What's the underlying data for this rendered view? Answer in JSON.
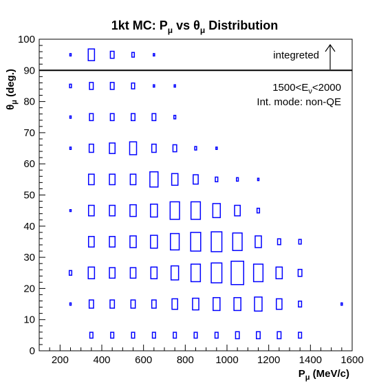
{
  "chart_data": {
    "type": "box2d",
    "title": {
      "main": "1kt MC: P",
      "sub1": "μ",
      "mid": " vs θ",
      "sub2": "μ",
      "end": " Distribution"
    },
    "xlabel": {
      "main": "P",
      "sub": "μ",
      "end": " (MeV/c)"
    },
    "ylabel": {
      "main": "θ",
      "sub": "μ",
      "end": " (deg.)"
    },
    "xlim": [
      100,
      1600
    ],
    "ylim": [
      0,
      100
    ],
    "x_ticks": [
      200,
      400,
      600,
      800,
      1000,
      1200,
      1400,
      1600
    ],
    "y_ticks": [
      0,
      10,
      20,
      30,
      40,
      50,
      60,
      70,
      80,
      90,
      100
    ],
    "divider_y": 90,
    "annotations": {
      "integrated": "integreted",
      "energy": {
        "pre": "1500<E",
        "sub": "ν",
        "post": "<2000"
      },
      "mode": "Int. mode: non-QE"
    },
    "bin_width": {
      "x": 100,
      "y": 10
    },
    "points": [
      {
        "x": 250,
        "y": 95,
        "w": 0.1
      },
      {
        "x": 350,
        "y": 95,
        "w": 0.5
      },
      {
        "x": 450,
        "y": 95,
        "w": 0.3
      },
      {
        "x": 550,
        "y": 95,
        "w": 0.2
      },
      {
        "x": 650,
        "y": 95,
        "w": 0.1
      },
      {
        "x": 250,
        "y": 85,
        "w": 0.15
      },
      {
        "x": 350,
        "y": 85,
        "w": 0.3
      },
      {
        "x": 450,
        "y": 85,
        "w": 0.3
      },
      {
        "x": 550,
        "y": 85,
        "w": 0.25
      },
      {
        "x": 650,
        "y": 85,
        "w": 0.1
      },
      {
        "x": 750,
        "y": 85,
        "w": 0.1
      },
      {
        "x": 250,
        "y": 75,
        "w": 0.1
      },
      {
        "x": 350,
        "y": 75,
        "w": 0.3
      },
      {
        "x": 450,
        "y": 75,
        "w": 0.3
      },
      {
        "x": 550,
        "y": 75,
        "w": 0.3
      },
      {
        "x": 650,
        "y": 75,
        "w": 0.3
      },
      {
        "x": 750,
        "y": 75,
        "w": 0.15
      },
      {
        "x": 250,
        "y": 65,
        "w": 0.1
      },
      {
        "x": 350,
        "y": 65,
        "w": 0.35
      },
      {
        "x": 450,
        "y": 65,
        "w": 0.45
      },
      {
        "x": 550,
        "y": 65,
        "w": 0.55
      },
      {
        "x": 650,
        "y": 65,
        "w": 0.35
      },
      {
        "x": 750,
        "y": 65,
        "w": 0.3
      },
      {
        "x": 850,
        "y": 65,
        "w": 0.15
      },
      {
        "x": 950,
        "y": 65,
        "w": 0.1
      },
      {
        "x": 350,
        "y": 55,
        "w": 0.45
      },
      {
        "x": 450,
        "y": 55,
        "w": 0.45
      },
      {
        "x": 550,
        "y": 55,
        "w": 0.45
      },
      {
        "x": 650,
        "y": 55,
        "w": 0.65
      },
      {
        "x": 750,
        "y": 55,
        "w": 0.5
      },
      {
        "x": 850,
        "y": 55,
        "w": 0.4
      },
      {
        "x": 950,
        "y": 55,
        "w": 0.2
      },
      {
        "x": 1050,
        "y": 55,
        "w": 0.15
      },
      {
        "x": 1150,
        "y": 55,
        "w": 0.1
      },
      {
        "x": 250,
        "y": 45,
        "w": 0.08
      },
      {
        "x": 350,
        "y": 45,
        "w": 0.45
      },
      {
        "x": 450,
        "y": 45,
        "w": 0.45
      },
      {
        "x": 550,
        "y": 45,
        "w": 0.5
      },
      {
        "x": 650,
        "y": 45,
        "w": 0.55
      },
      {
        "x": 750,
        "y": 45,
        "w": 0.75
      },
      {
        "x": 850,
        "y": 45,
        "w": 0.75
      },
      {
        "x": 950,
        "y": 45,
        "w": 0.6
      },
      {
        "x": 1050,
        "y": 45,
        "w": 0.45
      },
      {
        "x": 1150,
        "y": 45,
        "w": 0.2
      },
      {
        "x": 350,
        "y": 35,
        "w": 0.45
      },
      {
        "x": 450,
        "y": 35,
        "w": 0.45
      },
      {
        "x": 550,
        "y": 35,
        "w": 0.5
      },
      {
        "x": 650,
        "y": 35,
        "w": 0.55
      },
      {
        "x": 750,
        "y": 35,
        "w": 0.7
      },
      {
        "x": 850,
        "y": 35,
        "w": 0.8
      },
      {
        "x": 950,
        "y": 35,
        "w": 0.85
      },
      {
        "x": 1050,
        "y": 35,
        "w": 0.75
      },
      {
        "x": 1150,
        "y": 35,
        "w": 0.5
      },
      {
        "x": 1250,
        "y": 35,
        "w": 0.25
      },
      {
        "x": 1350,
        "y": 35,
        "w": 0.2
      },
      {
        "x": 250,
        "y": 25,
        "w": 0.2
      },
      {
        "x": 350,
        "y": 25,
        "w": 0.5
      },
      {
        "x": 450,
        "y": 25,
        "w": 0.45
      },
      {
        "x": 550,
        "y": 25,
        "w": 0.45
      },
      {
        "x": 650,
        "y": 25,
        "w": 0.5
      },
      {
        "x": 750,
        "y": 25,
        "w": 0.6
      },
      {
        "x": 850,
        "y": 25,
        "w": 0.75
      },
      {
        "x": 950,
        "y": 25,
        "w": 0.85
      },
      {
        "x": 1050,
        "y": 25,
        "w": 1.0
      },
      {
        "x": 1150,
        "y": 25,
        "w": 0.75
      },
      {
        "x": 1250,
        "y": 25,
        "w": 0.5
      },
      {
        "x": 1350,
        "y": 25,
        "w": 0.3
      },
      {
        "x": 250,
        "y": 15,
        "w": 0.1
      },
      {
        "x": 350,
        "y": 15,
        "w": 0.35
      },
      {
        "x": 450,
        "y": 15,
        "w": 0.35
      },
      {
        "x": 550,
        "y": 15,
        "w": 0.35
      },
      {
        "x": 650,
        "y": 15,
        "w": 0.35
      },
      {
        "x": 750,
        "y": 15,
        "w": 0.45
      },
      {
        "x": 850,
        "y": 15,
        "w": 0.5
      },
      {
        "x": 950,
        "y": 15,
        "w": 0.55
      },
      {
        "x": 1050,
        "y": 15,
        "w": 0.55
      },
      {
        "x": 1150,
        "y": 15,
        "w": 0.6
      },
      {
        "x": 1250,
        "y": 15,
        "w": 0.45
      },
      {
        "x": 1350,
        "y": 15,
        "w": 0.25
      },
      {
        "x": 1550,
        "y": 15,
        "w": 0.1
      },
      {
        "x": 350,
        "y": 5,
        "w": 0.25
      },
      {
        "x": 450,
        "y": 5,
        "w": 0.25
      },
      {
        "x": 550,
        "y": 5,
        "w": 0.25
      },
      {
        "x": 650,
        "y": 5,
        "w": 0.25
      },
      {
        "x": 750,
        "y": 5,
        "w": 0.25
      },
      {
        "x": 850,
        "y": 5,
        "w": 0.25
      },
      {
        "x": 950,
        "y": 5,
        "w": 0.25
      },
      {
        "x": 1050,
        "y": 5,
        "w": 0.3
      },
      {
        "x": 1150,
        "y": 5,
        "w": 0.3
      },
      {
        "x": 1250,
        "y": 5,
        "w": 0.3
      },
      {
        "x": 1350,
        "y": 5,
        "w": 0.25
      }
    ],
    "box_color": "#0000ff",
    "grid": false
  }
}
